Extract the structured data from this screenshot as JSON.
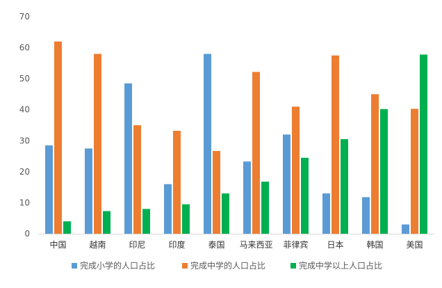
{
  "chart_data": {
    "type": "bar",
    "categories": [
      "中国",
      "越南",
      "印尼",
      "印度",
      "泰国",
      "马来西亚",
      "菲律宾",
      "日本",
      "韩国",
      "美国"
    ],
    "series": [
      {
        "name": "完成小学的人口占比",
        "color": "#5B9BD5",
        "values": [
          28.5,
          27.5,
          48.5,
          16,
          58,
          23.3,
          32,
          13,
          11.8,
          3
        ]
      },
      {
        "name": "完成中学的人口占比",
        "color": "#ED7D31",
        "values": [
          62,
          58,
          35,
          33.2,
          26.7,
          52.2,
          41,
          57.5,
          45,
          40.3
        ]
      },
      {
        "name": "完成中学以上人口占比",
        "color": "#00B050",
        "values": [
          4,
          7.3,
          8,
          9.5,
          13,
          16.8,
          24.5,
          30.5,
          40.2,
          57.8
        ]
      }
    ],
    "ylim": [
      0,
      70
    ],
    "yticks": [
      0,
      10,
      20,
      30,
      40,
      50,
      60,
      70
    ],
    "grid": false,
    "legend_position": "bottom"
  }
}
